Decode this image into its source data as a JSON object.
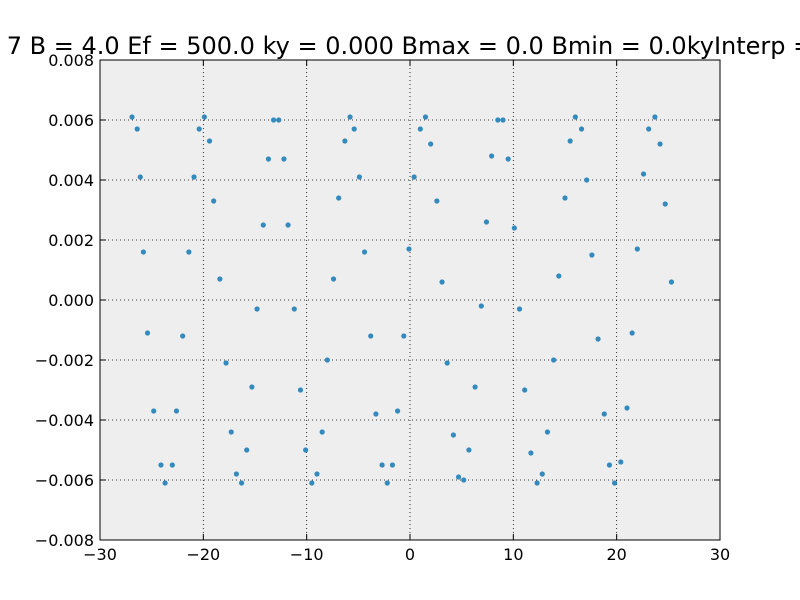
{
  "chart_data": {
    "type": "scatter",
    "title": "7 B = 4.0 Ef = 500.0 ky = 0.000 Bmax = 0.0 Bmin = 0.0kyInterp =",
    "xlabel": "",
    "ylabel": "",
    "xlim": [
      -30,
      30
    ],
    "ylim": [
      -0.008,
      0.008
    ],
    "x_ticks": [
      -30,
      -20,
      -10,
      0,
      10,
      20,
      30
    ],
    "x_tick_labels": [
      "−30",
      "−20",
      "−10",
      "0",
      "10",
      "20",
      "30"
    ],
    "y_ticks": [
      -0.008,
      -0.006,
      -0.004,
      -0.002,
      0.0,
      0.002,
      0.004,
      0.006,
      0.008
    ],
    "y_tick_labels": [
      "−0.008",
      "−0.006",
      "−0.004",
      "−0.002",
      "0.000",
      "0.002",
      "0.004",
      "0.006",
      "0.008"
    ],
    "grid": true,
    "colors": {
      "point": "#348abd",
      "plot_bg": "#eeeeee",
      "grid": "#000000"
    },
    "points": [
      [
        -26.9,
        0.0061
      ],
      [
        -26.4,
        0.0057
      ],
      [
        -26.1,
        0.0041
      ],
      [
        -25.8,
        0.0016
      ],
      [
        -25.4,
        -0.0011
      ],
      [
        -24.8,
        -0.0037
      ],
      [
        -24.1,
        -0.0055
      ],
      [
        -23.7,
        -0.0061
      ],
      [
        -23.0,
        -0.0055
      ],
      [
        -22.6,
        -0.0037
      ],
      [
        -22.0,
        -0.0012
      ],
      [
        -21.4,
        0.0016
      ],
      [
        -20.9,
        0.0041
      ],
      [
        -20.4,
        0.0057
      ],
      [
        -19.9,
        0.0061
      ],
      [
        -19.4,
        0.0053
      ],
      [
        -19.0,
        0.0033
      ],
      [
        -18.4,
        0.0007
      ],
      [
        -17.8,
        -0.0021
      ],
      [
        -17.3,
        -0.0044
      ],
      [
        -16.8,
        -0.0058
      ],
      [
        -16.3,
        -0.0061
      ],
      [
        -15.8,
        -0.005
      ],
      [
        -15.3,
        -0.0029
      ],
      [
        -14.8,
        -0.0003
      ],
      [
        -14.2,
        0.0025
      ],
      [
        -13.7,
        0.0047
      ],
      [
        -13.2,
        0.006
      ],
      [
        -12.7,
        0.006
      ],
      [
        -12.2,
        0.0047
      ],
      [
        -11.8,
        0.0025
      ],
      [
        -11.2,
        -0.0003
      ],
      [
        -10.6,
        -0.003
      ],
      [
        -10.1,
        -0.005
      ],
      [
        -9.5,
        -0.0061
      ],
      [
        -9.0,
        -0.0058
      ],
      [
        -8.5,
        -0.0044
      ],
      [
        -8.0,
        -0.002
      ],
      [
        -7.4,
        0.0007
      ],
      [
        -6.9,
        0.0034
      ],
      [
        -6.3,
        0.0053
      ],
      [
        -5.8,
        0.0061
      ],
      [
        -5.4,
        0.0057
      ],
      [
        -4.9,
        0.0041
      ],
      [
        -4.4,
        0.0016
      ],
      [
        -3.8,
        -0.0012
      ],
      [
        -3.3,
        -0.0038
      ],
      [
        -2.7,
        -0.0055
      ],
      [
        -2.2,
        -0.0061
      ],
      [
        -1.7,
        -0.0055
      ],
      [
        -1.2,
        -0.0037
      ],
      [
        -0.6,
        -0.0012
      ],
      [
        -0.1,
        0.0017
      ],
      [
        0.4,
        0.0041
      ],
      [
        1.0,
        0.0057
      ],
      [
        1.5,
        0.0061
      ],
      [
        2.0,
        0.0052
      ],
      [
        2.6,
        0.0033
      ],
      [
        3.1,
        0.0006
      ],
      [
        3.6,
        -0.0021
      ],
      [
        4.2,
        -0.0045
      ],
      [
        4.7,
        -0.0059
      ],
      [
        5.2,
        -0.006
      ],
      [
        5.7,
        -0.005
      ],
      [
        6.3,
        -0.0029
      ],
      [
        6.9,
        -0.0002
      ],
      [
        7.4,
        0.0026
      ],
      [
        7.9,
        0.0048
      ],
      [
        8.5,
        0.006
      ],
      [
        9.0,
        0.006
      ],
      [
        9.5,
        0.0047
      ],
      [
        10.1,
        0.0024
      ],
      [
        10.6,
        -0.0003
      ],
      [
        11.1,
        -0.003
      ],
      [
        11.7,
        -0.0051
      ],
      [
        12.3,
        -0.0061
      ],
      [
        12.8,
        -0.0058
      ],
      [
        13.3,
        -0.0044
      ],
      [
        13.9,
        -0.002
      ],
      [
        14.4,
        0.0008
      ],
      [
        15.0,
        0.0034
      ],
      [
        15.5,
        0.0053
      ],
      [
        16.0,
        0.0061
      ],
      [
        16.6,
        0.0057
      ],
      [
        17.1,
        0.004
      ],
      [
        17.6,
        0.0015
      ],
      [
        18.2,
        -0.0013
      ],
      [
        18.8,
        -0.0038
      ],
      [
        19.3,
        -0.0055
      ],
      [
        19.8,
        -0.0061
      ],
      [
        20.4,
        -0.0054
      ],
      [
        21.0,
        -0.0036
      ],
      [
        21.5,
        -0.0011
      ],
      [
        22.0,
        0.0017
      ],
      [
        22.6,
        0.0042
      ],
      [
        23.1,
        0.0057
      ],
      [
        23.7,
        0.0061
      ],
      [
        24.2,
        0.0052
      ],
      [
        24.7,
        0.0032
      ],
      [
        25.3,
        0.0006
      ]
    ]
  }
}
